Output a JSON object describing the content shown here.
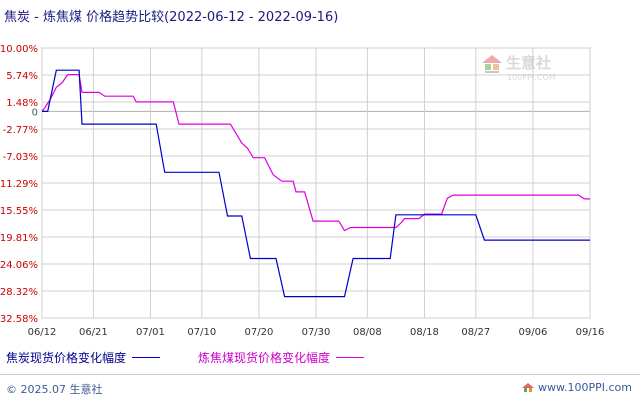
{
  "title": "焦炭 - 炼焦煤 价格趋势比较(2022-06-12 - 2022-09-16)",
  "watermark": {
    "brand": "生意社",
    "url": "100PPI.COM"
  },
  "footer": {
    "copyright": "© 2025.07 生意社",
    "site": "www.100PPI.com"
  },
  "colors": {
    "series_1": "#0000cc",
    "series_2": "#e000e0",
    "grid": "#d0d0d0",
    "axis": "#888888",
    "zero": "#b0b0b0"
  },
  "chart_data": {
    "type": "line",
    "title": "焦炭 - 炼焦煤 价格趋势比较(2022-06-12 - 2022-09-16)",
    "xlabel": "",
    "ylabel": "",
    "ylim": [
      -32.58,
      10.0
    ],
    "y_ticks": [
      "10.00%",
      "5.74%",
      "1.48%",
      "0",
      "-2.77%",
      "-7.03%",
      "-11.29%",
      "-15.55%",
      "-19.81%",
      "-24.06%",
      "-28.32%",
      "-32.58%"
    ],
    "y_tick_values": [
      10.0,
      5.74,
      1.48,
      0,
      -2.77,
      -7.03,
      -11.29,
      -15.55,
      -19.81,
      -24.06,
      -28.32,
      -32.58
    ],
    "x_ticks": [
      "06/12",
      "06/21",
      "07/01",
      "07/10",
      "07/20",
      "07/30",
      "08/08",
      "08/18",
      "08/27",
      "09/06",
      "09/16"
    ],
    "x_tick_days": [
      0,
      9,
      19,
      28,
      38,
      48,
      57,
      67,
      76,
      86,
      96
    ],
    "grid": true,
    "legend_position": "bottom",
    "series": [
      {
        "name": "焦炭现货价格变化幅度",
        "points": [
          [
            0,
            0
          ],
          [
            1,
            0
          ],
          [
            2.5,
            6.5
          ],
          [
            6.5,
            6.5
          ],
          [
            7,
            -2
          ],
          [
            20,
            -2
          ],
          [
            21.5,
            -9.6
          ],
          [
            31,
            -9.6
          ],
          [
            32.5,
            -16.5
          ],
          [
            35,
            -16.5
          ],
          [
            36.5,
            -23.2
          ],
          [
            41,
            -23.2
          ],
          [
            42.5,
            -29.2
          ],
          [
            53,
            -29.2
          ],
          [
            54.5,
            -23.2
          ],
          [
            61,
            -23.2
          ],
          [
            62,
            -16.3
          ],
          [
            76,
            -16.3
          ],
          [
            77.5,
            -20.3
          ],
          [
            96,
            -20.3
          ]
        ]
      },
      {
        "name": "炼焦煤现货价格变化幅度",
        "points": [
          [
            0,
            0
          ],
          [
            0.5,
            0.6
          ],
          [
            1.5,
            2
          ],
          [
            2.5,
            3.8
          ],
          [
            3.5,
            4.5
          ],
          [
            4.5,
            5.8
          ],
          [
            6.5,
            5.8
          ],
          [
            7,
            3
          ],
          [
            10,
            3
          ],
          [
            11,
            2.4
          ],
          [
            16,
            2.4
          ],
          [
            16.5,
            1.5
          ],
          [
            23,
            1.5
          ],
          [
            24,
            -2
          ],
          [
            33,
            -2
          ],
          [
            34,
            -3.5
          ],
          [
            35,
            -5
          ],
          [
            36,
            -5.8
          ],
          [
            37,
            -7.3
          ],
          [
            39,
            -7.3
          ],
          [
            40.5,
            -10
          ],
          [
            42,
            -11
          ],
          [
            44,
            -11
          ],
          [
            44.5,
            -12.7
          ],
          [
            46,
            -12.7
          ],
          [
            47.5,
            -17.3
          ],
          [
            52,
            -17.3
          ],
          [
            53,
            -18.8
          ],
          [
            54,
            -18.3
          ],
          [
            62,
            -18.3
          ],
          [
            63,
            -17.5
          ],
          [
            63.5,
            -16.9
          ],
          [
            66,
            -16.9
          ],
          [
            67,
            -16.2
          ],
          [
            70,
            -16.2
          ],
          [
            71,
            -13.7
          ],
          [
            72,
            -13.2
          ],
          [
            94,
            -13.2
          ],
          [
            95,
            -13.8
          ],
          [
            96,
            -13.8
          ]
        ]
      }
    ]
  }
}
